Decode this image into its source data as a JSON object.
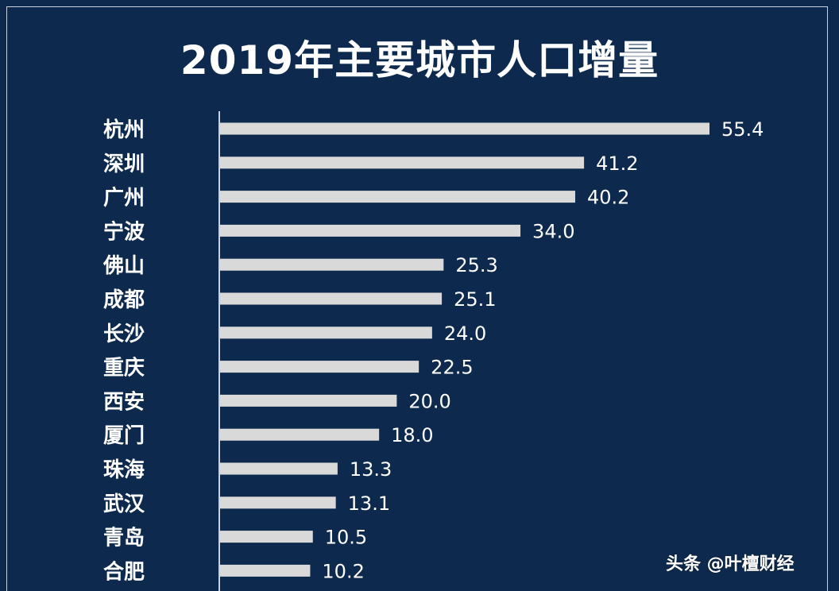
{
  "chart_data": {
    "type": "bar",
    "orientation": "horizontal",
    "title": "2019年主要城市人口增量",
    "categories": [
      "杭州",
      "深圳",
      "广州",
      "宁波",
      "佛山",
      "成都",
      "长沙",
      "重庆",
      "西安",
      "厦门",
      "珠海",
      "武汉",
      "青岛",
      "合肥"
    ],
    "values": [
      55.4,
      41.2,
      40.2,
      34.0,
      25.3,
      25.1,
      24.0,
      22.5,
      20.0,
      18.0,
      13.3,
      13.1,
      10.5,
      10.2
    ],
    "value_labels": [
      "55.4",
      "41.2",
      "40.2",
      "34.0",
      "25.3",
      "25.1",
      "24.0",
      "22.5",
      "20.0",
      "18.0",
      "13.3",
      "13.1",
      "10.5",
      "10.2"
    ],
    "xlim": [
      0,
      55.4
    ],
    "grid": false,
    "legend": "none"
  },
  "colors": {
    "background": "#0d2a4e",
    "bar": "#d9d9d9",
    "text": "#ffffff",
    "axis": "#c9d2de"
  },
  "watermark": "头条 @叶檀财经"
}
